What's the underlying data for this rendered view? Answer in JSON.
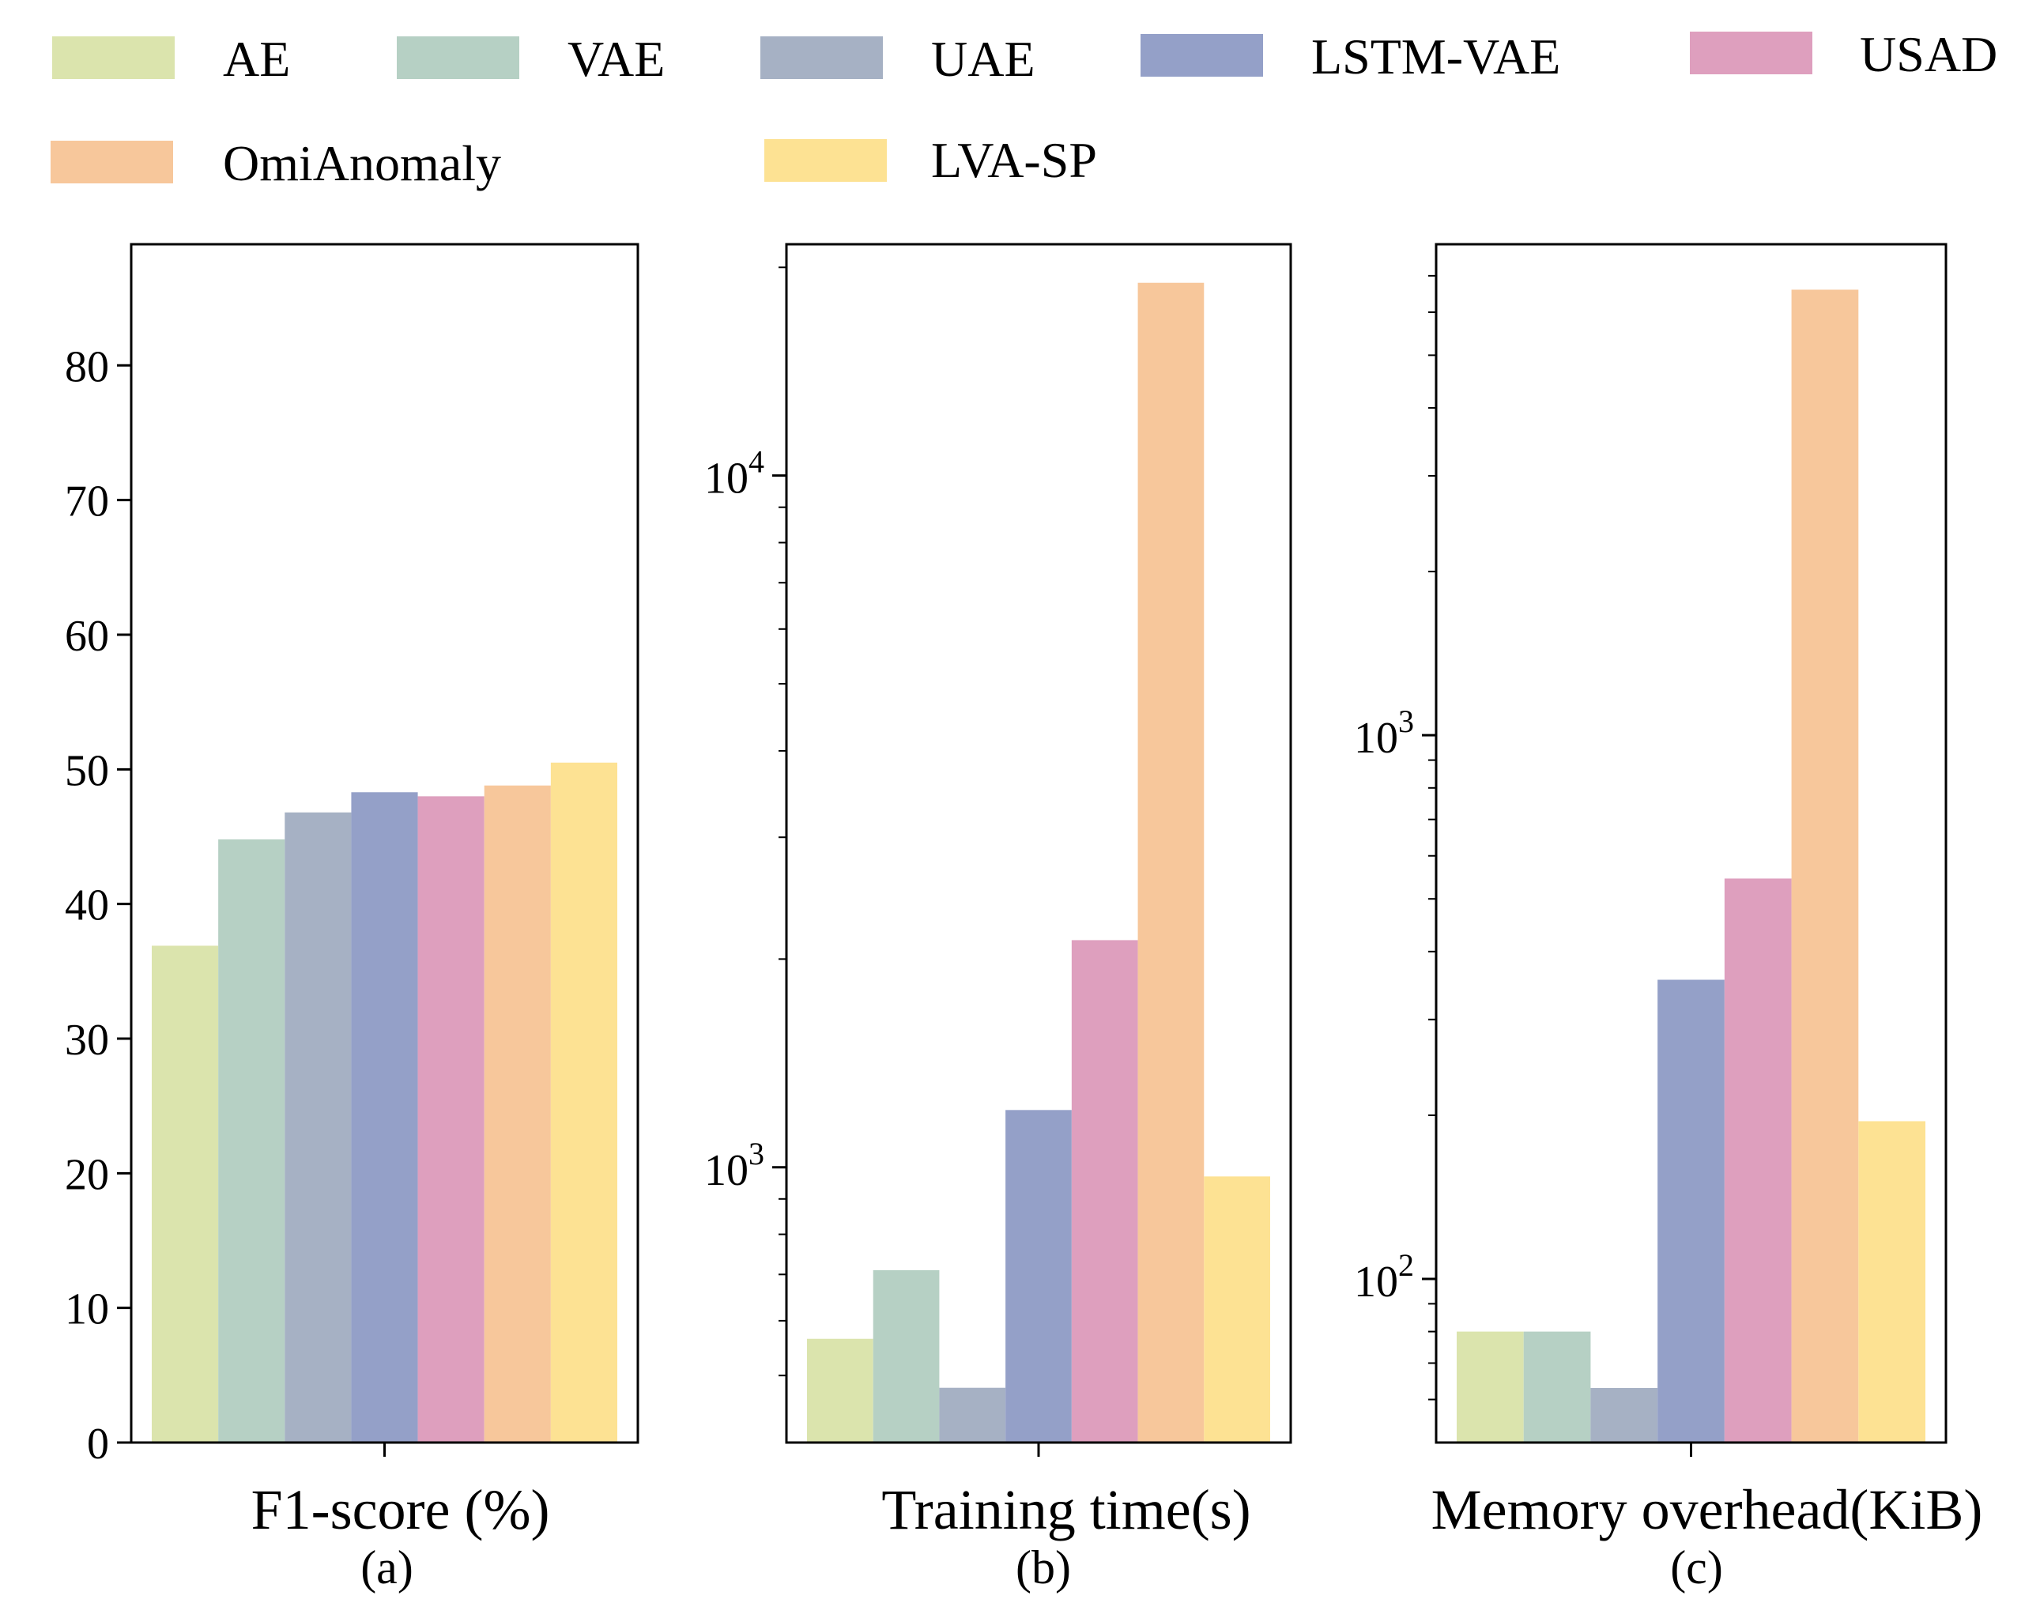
{
  "legend": {
    "items": [
      {
        "label": "AE",
        "color": "#dbe4ad"
      },
      {
        "label": "VAE",
        "color": "#b6d0c4"
      },
      {
        "label": "UAE",
        "color": "#a6b1c4"
      },
      {
        "label": "LSTM-VAE",
        "color": "#94a0c8"
      },
      {
        "label": "USAD",
        "color": "#de9fbe"
      },
      {
        "label": "OmiAnomaly",
        "color": "#f7c79b"
      },
      {
        "label": "LVA-SP",
        "color": "#fde293"
      }
    ]
  },
  "chart_data": [
    {
      "type": "bar",
      "scale": "linear",
      "xlabel": "F1-score (%)",
      "caption": "(a)",
      "categories": [
        "AE",
        "VAE",
        "UAE",
        "LSTM-VAE",
        "USAD",
        "OmiAnomaly",
        "LVA-SP"
      ],
      "values": [
        36.9,
        44.8,
        46.8,
        48.3,
        48.0,
        48.8,
        50.5
      ],
      "ylim": [
        0,
        89
      ],
      "yticks": [
        0,
        10,
        20,
        30,
        40,
        50,
        60,
        70,
        80
      ]
    },
    {
      "type": "bar",
      "scale": "log",
      "xlabel": "Training time(s)",
      "caption": "(b)",
      "categories": [
        "AE",
        "VAE",
        "UAE",
        "LSTM-VAE",
        "USAD",
        "OmiAnomaly",
        "LVA-SP"
      ],
      "values": [
        565,
        710,
        480,
        1210,
        2130,
        19000,
        970
      ],
      "ylim": [
        400,
        21600
      ],
      "yticks": [
        1000,
        10000
      ],
      "ytick_labels": [
        {
          "base": "10",
          "exp": "3"
        },
        {
          "base": "10",
          "exp": "4"
        }
      ]
    },
    {
      "type": "bar",
      "scale": "log",
      "xlabel": "Memory overhead(KiB)",
      "caption": "(c)",
      "categories": [
        "AE",
        "VAE",
        "UAE",
        "LSTM-VAE",
        "USAD",
        "OmiAnomaly",
        "LVA-SP"
      ],
      "values": [
        80,
        80,
        63,
        355,
        545,
        6600,
        195
      ],
      "ylim": [
        50,
        8000
      ],
      "yticks": [
        100,
        1000
      ],
      "ytick_labels": [
        {
          "base": "10",
          "exp": "2"
        },
        {
          "base": "10",
          "exp": "3"
        }
      ]
    }
  ]
}
